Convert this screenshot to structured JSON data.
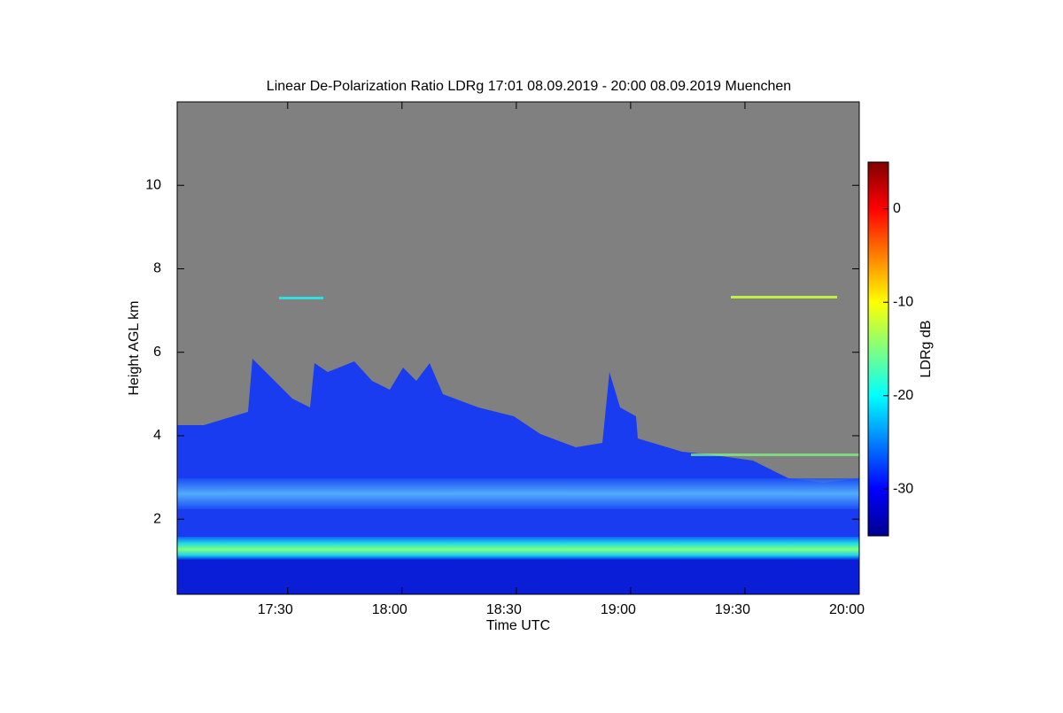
{
  "chart_data": {
    "type": "heatmap",
    "title": "Linear De-Polarization Ratio LDRg   17:01 08.09.2019 - 20:00 08.09.2019 Muenchen",
    "x_label": "Time UTC",
    "y_label": "Height AGL km",
    "colorbar_label": "LDRg dB",
    "xlim": [
      1021,
      1200
    ],
    "xticks": [
      {
        "value": 1050,
        "label": "17:30"
      },
      {
        "value": 1080,
        "label": "18:00"
      },
      {
        "value": 1110,
        "label": "18:30"
      },
      {
        "value": 1140,
        "label": "19:00"
      },
      {
        "value": 1170,
        "label": "19:30"
      },
      {
        "value": 1200,
        "label": "20:00"
      }
    ],
    "ylim": [
      0.2,
      12
    ],
    "yticks": [
      2,
      4,
      6,
      8,
      10
    ],
    "clim": [
      -35,
      5
    ],
    "cticks": [
      -30,
      -20,
      -10,
      0
    ],
    "colormap": "jet"
  }
}
